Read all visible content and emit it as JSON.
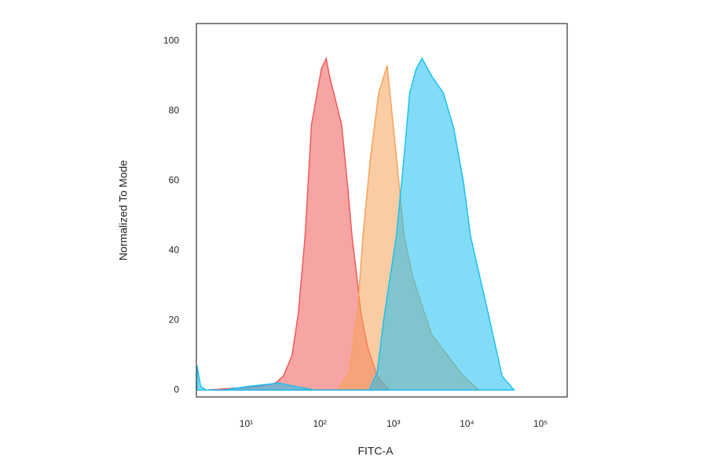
{
  "chart_data": {
    "type": "area",
    "x_label": "FITC-A",
    "y_label": "Normalized To Mode",
    "xscale": "log",
    "xlim": [
      2.1,
      230000
    ],
    "ylim": [
      -2,
      105
    ],
    "xticks": [
      {
        "value": 10,
        "label": "10¹"
      },
      {
        "value": 100,
        "label": "10²"
      },
      {
        "value": 1000,
        "label": "10³"
      },
      {
        "value": 10000,
        "label": "10⁴"
      },
      {
        "value": 100000,
        "label": "10⁵"
      }
    ],
    "yticks": [
      0,
      20,
      40,
      60,
      80,
      100
    ],
    "series": [
      {
        "color": "#f05a5a",
        "x": [
          3,
          15,
          25,
          32,
          42,
          51,
          63,
          77,
          90,
          105,
          122,
          135,
          155,
          198,
          240,
          274,
          320,
          362,
          450,
          603,
          870
        ],
        "values": [
          0,
          1,
          2,
          4,
          10,
          22,
          44,
          76,
          84,
          92,
          95,
          90,
          85,
          76,
          58,
          44,
          32,
          22,
          12,
          4,
          0
        ]
      },
      {
        "color": "#f5a35a",
        "x": [
          174,
          251,
          324,
          385,
          490,
          630,
          822,
          1096,
          1400,
          1800,
          2290,
          3300,
          5400,
          8900,
          14500
        ],
        "values": [
          0,
          5,
          22,
          44,
          67,
          85,
          93,
          67,
          44,
          33,
          26,
          16,
          10,
          4,
          0
        ]
      },
      {
        "color": "#1cc0f0",
        "x": [
          2.14,
          2.4,
          2.86,
          5.1,
          10.3,
          28,
          46,
          85,
          470,
          600,
          760,
          1096,
          1400,
          1660,
          2040,
          2450,
          3300,
          4800,
          6600,
          8900,
          11200,
          19400,
          30000,
          43600
        ],
        "values": [
          7,
          1,
          0,
          0,
          1,
          2,
          1,
          0,
          0,
          5,
          22,
          44,
          67,
          85,
          92,
          95,
          90,
          85,
          75,
          60,
          44,
          22,
          4,
          0
        ]
      }
    ]
  }
}
